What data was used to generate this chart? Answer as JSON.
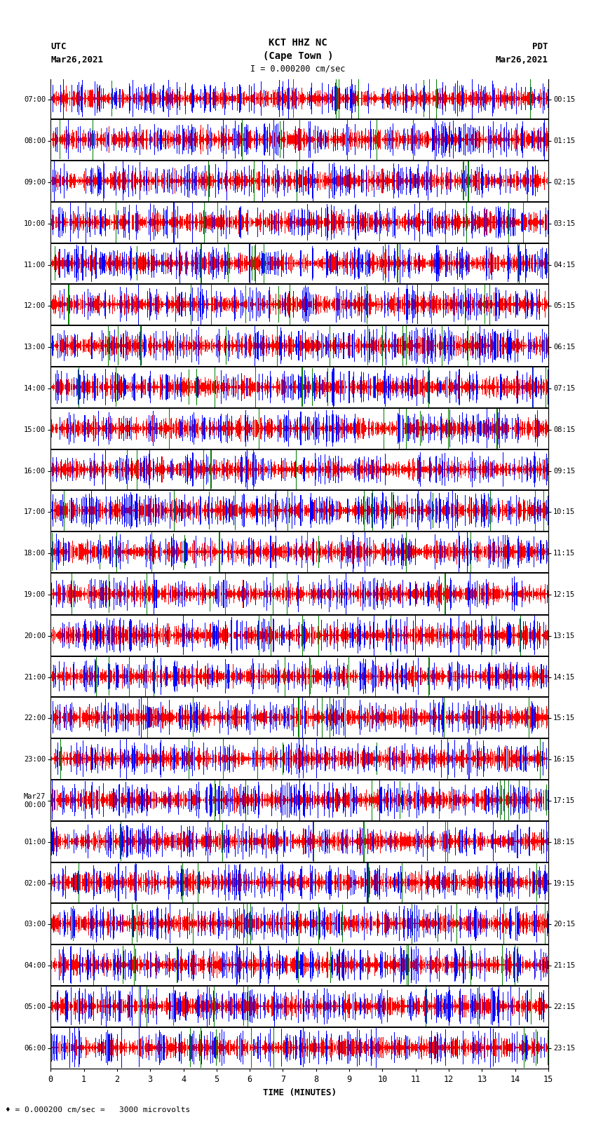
{
  "title_line1": "KCT HHZ NC",
  "title_line2": "(Cape Town )",
  "title_scale": "I = 0.000200 cm/sec",
  "left_label_top": "UTC",
  "left_label_date": "Mar26,2021",
  "right_label_top": "PDT",
  "right_label_date": "Mar26,2021",
  "bottom_label": "TIME (MINUTES)",
  "bottom_note": "♦ = 0.000200 cm/sec =   3000 microvolts",
  "utc_times": [
    "07:00",
    "08:00",
    "09:00",
    "10:00",
    "11:00",
    "12:00",
    "13:00",
    "14:00",
    "15:00",
    "16:00",
    "17:00",
    "18:00",
    "19:00",
    "20:00",
    "21:00",
    "22:00",
    "23:00",
    "Mar27\n00:00",
    "01:00",
    "02:00",
    "03:00",
    "04:00",
    "05:00",
    "06:00"
  ],
  "pdt_times": [
    "00:15",
    "01:15",
    "02:15",
    "03:15",
    "04:15",
    "05:15",
    "06:15",
    "07:15",
    "08:15",
    "09:15",
    "10:15",
    "11:15",
    "12:15",
    "13:15",
    "14:15",
    "15:15",
    "16:15",
    "17:15",
    "18:15",
    "19:15",
    "20:15",
    "21:15",
    "22:15",
    "23:15"
  ],
  "n_rows": 24,
  "xlim": [
    0,
    15
  ],
  "background_color": "#ffffff",
  "fig_width": 8.5,
  "fig_height": 16.13,
  "dpi": 100
}
